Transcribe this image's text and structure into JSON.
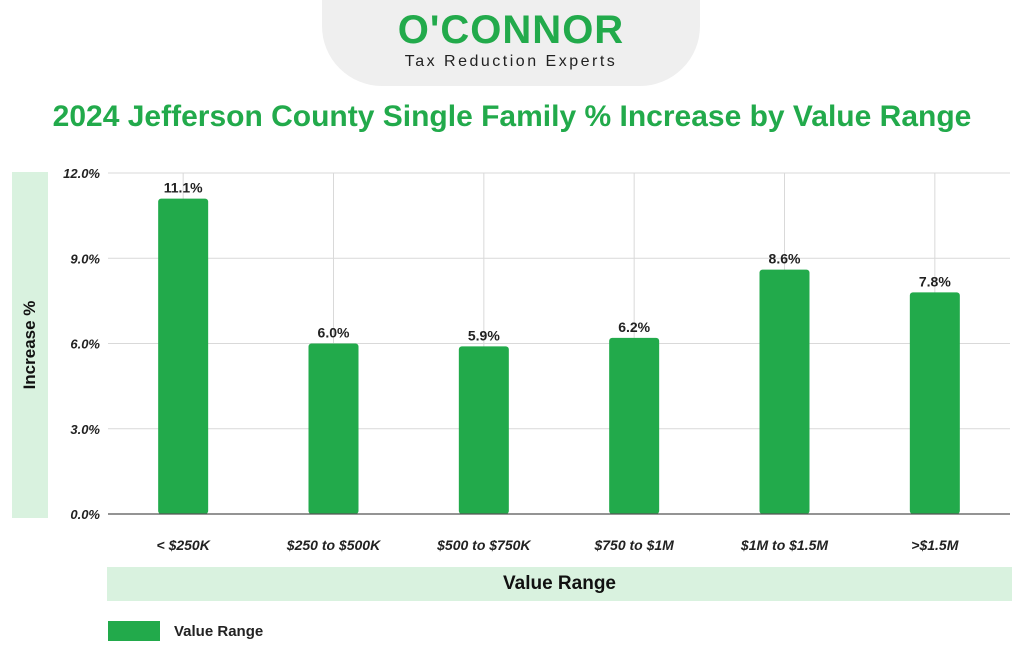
{
  "logo": {
    "name": "O'CONNOR",
    "tagline": "Tax Reduction Experts",
    "color": "#22aa4b"
  },
  "colors": {
    "title": "#22aa4b",
    "bar": "#22aa4b",
    "axis_band": "#d9f2df",
    "grid": "#d9d9d9"
  },
  "legend": {
    "label": "Value Range"
  },
  "chart_data": {
    "type": "bar",
    "title": "2024 Jefferson County Single Family % Increase by Value Range",
    "xlabel": "Value Range",
    "ylabel": "Increase %",
    "categories": [
      "< $250K",
      "$250 to $500K",
      "$500 to $750K",
      "$750 to $1M",
      "$1M to $1.5M",
      ">$1.5M"
    ],
    "series": [
      {
        "name": "Value Range",
        "values": [
          11.1,
          6.0,
          5.9,
          6.2,
          8.6,
          7.8
        ]
      }
    ],
    "data_labels": [
      "11.1%",
      "6.0%",
      "5.9%",
      "6.2%",
      "8.6%",
      "7.8%"
    ],
    "yticks": [
      "0.0%",
      "3.0%",
      "6.0%",
      "9.0%",
      "12.0%"
    ],
    "ylim": [
      0,
      12
    ],
    "grid": true,
    "legend_position": "bottom-left"
  }
}
